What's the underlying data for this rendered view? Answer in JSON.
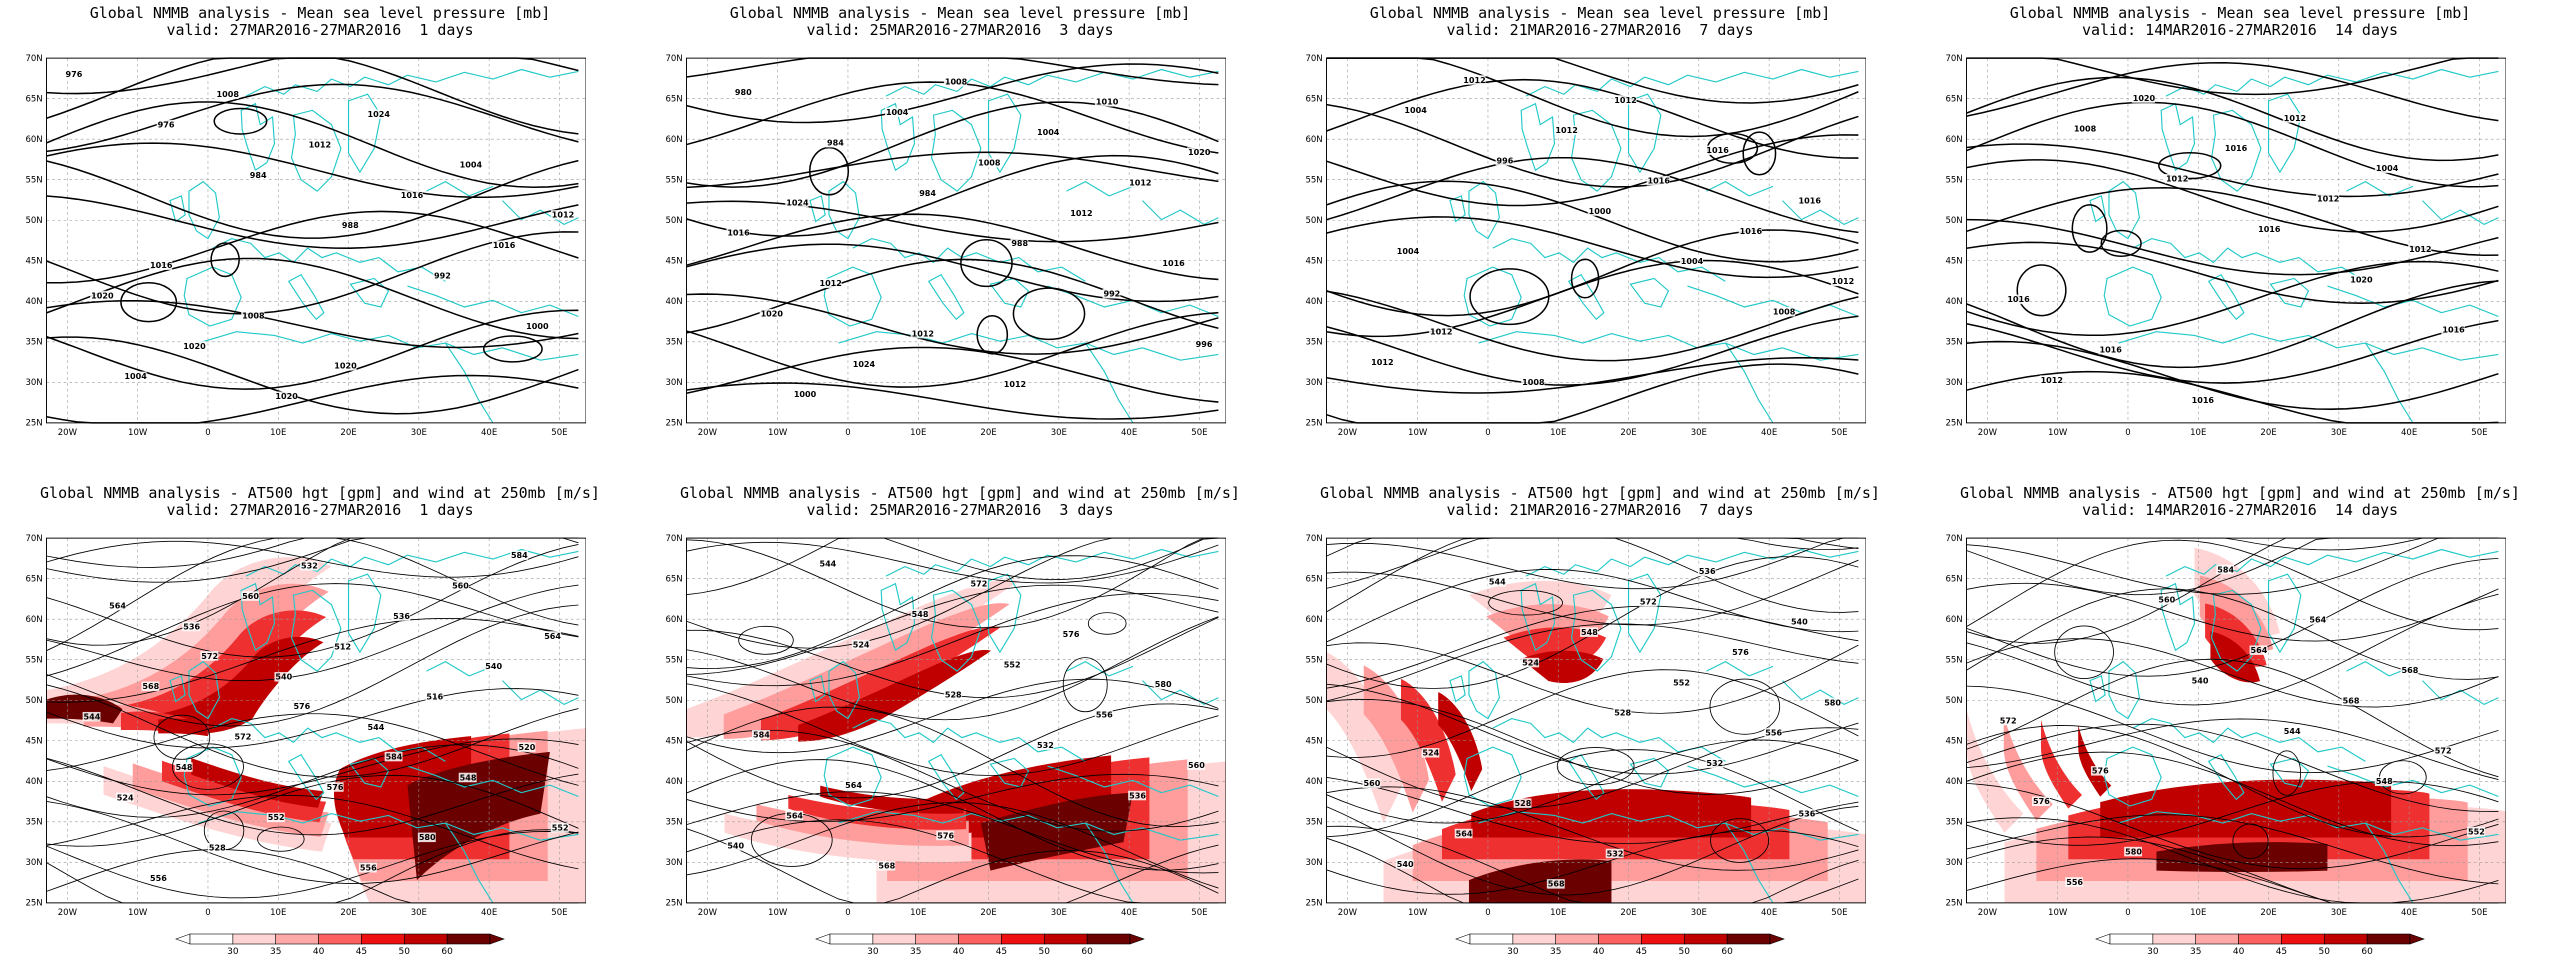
{
  "panels": [
    {
      "title1": "Global NMMB analysis - Mean sea level pressure [mb]",
      "title2": "valid: 27MAR2016-27MAR2016  1 days",
      "kind": "mslp",
      "labels": [
        "976",
        "976",
        "984",
        "988",
        "992",
        "1000",
        "1004",
        "1008",
        "1012",
        "1016",
        "1016",
        "1020",
        "1020",
        "1020",
        "1024",
        "1004",
        "1012",
        "1016",
        "1008",
        "1020"
      ]
    },
    {
      "title1": "Global NMMB analysis - Mean sea level pressure [mb]",
      "title2": "valid: 25MAR2016-27MAR2016  3 days",
      "kind": "mslp",
      "labels": [
        "980",
        "984",
        "984",
        "988",
        "992",
        "996",
        "1000",
        "1004",
        "1008",
        "1012",
        "1016",
        "1020",
        "1024",
        "1008",
        "1004",
        "1012",
        "1016",
        "1012",
        "1012",
        "1012",
        "1010",
        "1020",
        "1024"
      ]
    },
    {
      "title1": "Global NMMB analysis - Mean sea level pressure [mb]",
      "title2": "valid: 21MAR2016-27MAR2016  7 days",
      "kind": "mslp",
      "labels": [
        "1004",
        "996",
        "1000",
        "1004",
        "1008",
        "1012",
        "1012",
        "1012",
        "1016",
        "1016",
        "1012",
        "1012",
        "1008",
        "1012",
        "1016",
        "1016",
        "1004"
      ]
    },
    {
      "title1": "Global NMMB analysis - Mean sea level pressure [mb]",
      "title2": "valid: 14MAR2016-27MAR2016  14 days",
      "kind": "mslp",
      "labels": [
        "1008",
        "1012",
        "1016",
        "1020",
        "1016",
        "1012",
        "1020",
        "1016",
        "1012",
        "1012",
        "1016",
        "1016",
        "1016",
        "1012",
        "1004"
      ]
    },
    {
      "title1": "Global NMMB analysis - AT500 hgt [gpm] and wind at 250mb [m/s]",
      "title2": "valid: 27MAR2016-27MAR2016  1 days",
      "kind": "hgt",
      "labels": [
        "536",
        "540",
        "544",
        "548",
        "552",
        "556",
        "560",
        "512",
        "516",
        "520",
        "524",
        "528",
        "532",
        "536",
        "540",
        "544",
        "548",
        "552",
        "556",
        "560",
        "564",
        "568",
        "572",
        "576",
        "580",
        "584",
        "564",
        "572",
        "576",
        "584"
      ]
    },
    {
      "title1": "Global NMMB analysis - AT500 hgt [gpm] and wind at 250mb [m/s]",
      "title2": "valid: 25MAR2016-27MAR2016  3 days",
      "kind": "hgt",
      "labels": [
        "524",
        "528",
        "532",
        "536",
        "540",
        "544",
        "548",
        "552",
        "556",
        "560",
        "564",
        "568",
        "572",
        "576",
        "580",
        "584",
        "564",
        "576"
      ]
    },
    {
      "title1": "Global NMMB analysis - AT500 hgt [gpm] and wind at 250mb [m/s]",
      "title2": "valid: 21MAR2016-27MAR2016  7 days",
      "kind": "hgt",
      "labels": [
        "524",
        "528",
        "532",
        "536",
        "540",
        "544",
        "548",
        "552",
        "556",
        "560",
        "564",
        "568",
        "572",
        "576",
        "580",
        "524",
        "528",
        "532",
        "536",
        "540"
      ]
    },
    {
      "title1": "Global NMMB analysis - AT500 hgt [gpm] and wind at 250mb [m/s]",
      "title2": "valid: 14MAR2016-27MAR2016  14 days",
      "kind": "hgt",
      "labels": [
        "540",
        "544",
        "548",
        "552",
        "556",
        "560",
        "564",
        "568",
        "572",
        "576",
        "580",
        "584",
        "564",
        "568",
        "572",
        "576"
      ]
    }
  ],
  "axes": {
    "lat_labels": [
      "70N",
      "65N",
      "60N",
      "55N",
      "50N",
      "45N",
      "40N",
      "35N",
      "30N",
      "25N"
    ],
    "lon_labels": [
      "20W",
      "10W",
      "0",
      "10E",
      "20E",
      "30E",
      "40E",
      "50E"
    ]
  },
  "colorbar": {
    "ticks": [
      "30",
      "35",
      "40",
      "45",
      "50",
      "60"
    ],
    "colors": [
      "#ffffff",
      "#ffd4d4",
      "#ffa8a8",
      "#ff6060",
      "#ee1010",
      "#c00000",
      "#6a0000"
    ]
  },
  "colors": {
    "coast": "#20c8c8",
    "contour": "#000000",
    "grid": "#9a9a9a"
  }
}
